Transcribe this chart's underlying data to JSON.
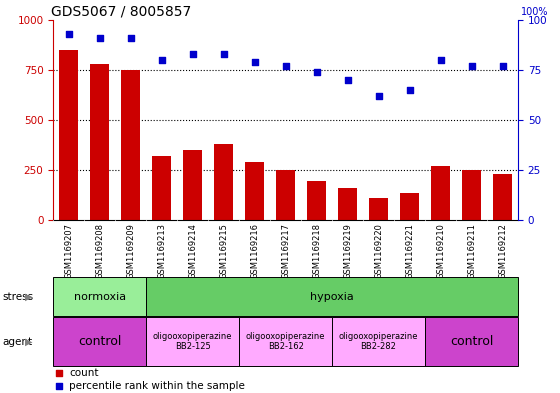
{
  "title": "GDS5067 / 8005857",
  "samples": [
    "GSM1169207",
    "GSM1169208",
    "GSM1169209",
    "GSM1169213",
    "GSM1169214",
    "GSM1169215",
    "GSM1169216",
    "GSM1169217",
    "GSM1169218",
    "GSM1169219",
    "GSM1169220",
    "GSM1169221",
    "GSM1169210",
    "GSM1169211",
    "GSM1169212"
  ],
  "counts": [
    850,
    780,
    750,
    320,
    350,
    380,
    290,
    250,
    195,
    160,
    110,
    135,
    270,
    250,
    230
  ],
  "percentiles": [
    93,
    91,
    91,
    80,
    83,
    83,
    79,
    77,
    74,
    70,
    62,
    65,
    80,
    77,
    77
  ],
  "ylim_left": [
    0,
    1000
  ],
  "ylim_right": [
    0,
    100
  ],
  "yticks_left": [
    0,
    250,
    500,
    750,
    1000
  ],
  "yticks_right": [
    0,
    25,
    50,
    75,
    100
  ],
  "bar_color": "#cc0000",
  "dot_color": "#0000cc",
  "stress_groups": [
    {
      "label": "normoxia",
      "start": 0,
      "end": 3,
      "color": "#99ee99"
    },
    {
      "label": "hypoxia",
      "start": 3,
      "end": 15,
      "color": "#66cc66"
    }
  ],
  "agent_groups": [
    {
      "label": "control",
      "start": 0,
      "end": 3,
      "color": "#cc44cc",
      "text_size": 9
    },
    {
      "label": "oligooxopiperazine\nBB2-125",
      "start": 3,
      "end": 6,
      "color": "#ffaaff",
      "text_size": 6
    },
    {
      "label": "oligooxopiperazine\nBB2-162",
      "start": 6,
      "end": 9,
      "color": "#ffaaff",
      "text_size": 6
    },
    {
      "label": "oligooxopiperazine\nBB2-282",
      "start": 9,
      "end": 12,
      "color": "#ffaaff",
      "text_size": 6
    },
    {
      "label": "control",
      "start": 12,
      "end": 15,
      "color": "#cc44cc",
      "text_size": 9
    }
  ],
  "tick_color_left": "#cc0000",
  "tick_color_right": "#0000cc",
  "xtick_bg": "#dddddd"
}
